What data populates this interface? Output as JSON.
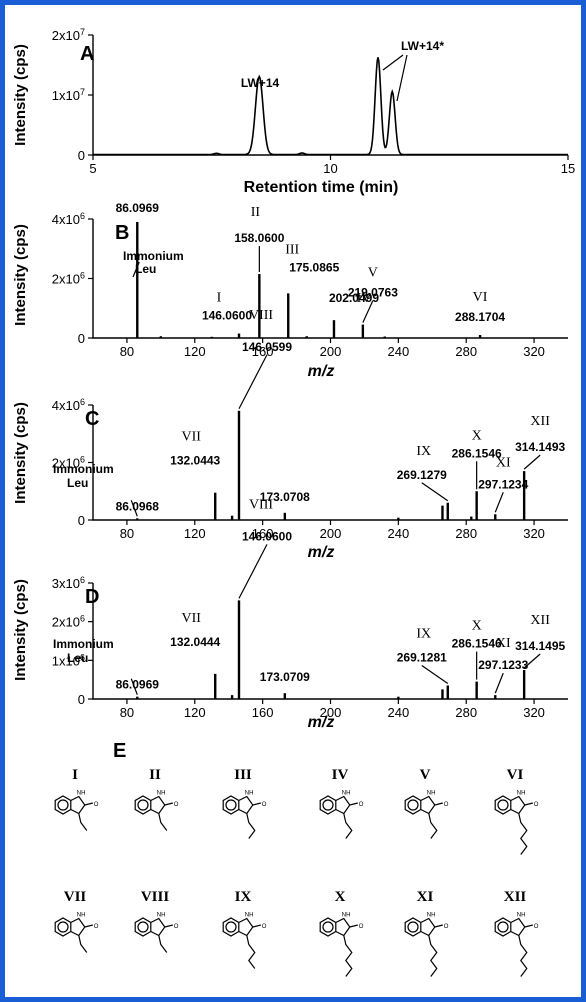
{
  "chart_data": [
    {
      "panel": "A",
      "type": "line",
      "xlabel": "Retention time (min)",
      "ylabel": "Intensity (cps)",
      "xlim": [
        5,
        15
      ],
      "ylim": [
        0,
        20000000
      ],
      "xticks": [
        5,
        10,
        15
      ],
      "yticks": [
        0,
        10000000,
        20000000
      ],
      "ytick_labels": [
        "0",
        "1x10^7",
        "2x10^7"
      ],
      "peaks": [
        {
          "x": 8.5,
          "y": 13000000,
          "width": 0.08
        },
        {
          "x": 11.0,
          "y": 16200000,
          "width": 0.06
        },
        {
          "x": 11.3,
          "y": 10500000,
          "width": 0.06
        },
        {
          "x": 7.6,
          "y": 200000,
          "width": 0.05
        },
        {
          "x": 9.4,
          "y": 250000,
          "width": 0.05
        }
      ],
      "baseline": 80000,
      "annotations": [
        {
          "text": "LW+14",
          "x": 8.5
        },
        {
          "text": "LW+14*",
          "x": 11.15
        }
      ]
    },
    {
      "panel": "B",
      "type": "bar",
      "xlabel": "m/z",
      "ylabel": "Intensity (cps)",
      "xlim": [
        60,
        340
      ],
      "ylim": [
        0,
        4000000
      ],
      "xticks": [
        80,
        120,
        160,
        200,
        240,
        280,
        320
      ],
      "yticks": [
        0,
        2000000,
        4000000
      ],
      "ytick_labels": [
        "0",
        "2x10^6",
        "4x10^6"
      ],
      "peaks": [
        {
          "mz": 86.0969,
          "intensity": 3900000,
          "label": "86.0969"
        },
        {
          "mz": 146.06,
          "intensity": 150000,
          "label": "146.0600",
          "numeral": "I"
        },
        {
          "mz": 158.06,
          "intensity": 2150000,
          "label": "158.0600",
          "numeral": "II"
        },
        {
          "mz": 175.0865,
          "intensity": 1500000,
          "label": "175.0865",
          "numeral": "III"
        },
        {
          "mz": 202.0499,
          "intensity": 600000,
          "label": "202.0499",
          "numeral": "IV"
        },
        {
          "mz": 219.0763,
          "intensity": 450000,
          "label": "219.0763",
          "numeral": "V"
        },
        {
          "mz": 288.1704,
          "intensity": 100000,
          "label": "288.1704",
          "numeral": "VI"
        },
        {
          "mz": 100,
          "intensity": 60000
        },
        {
          "mz": 130,
          "intensity": 40000
        },
        {
          "mz": 186,
          "intensity": 60000
        },
        {
          "mz": 232,
          "intensity": 50000
        }
      ],
      "immonium": [
        "Immonium",
        "Leu"
      ]
    },
    {
      "panel": "C",
      "type": "bar",
      "xlabel": "m/z",
      "ylabel": "Intensity (cps)",
      "xlim": [
        60,
        340
      ],
      "ylim": [
        0,
        4000000
      ],
      "xticks": [
        80,
        120,
        160,
        200,
        240,
        280,
        320
      ],
      "yticks": [
        0,
        2000000,
        4000000
      ],
      "ytick_labels": [
        "0",
        "2x10^6",
        "4x10^6"
      ],
      "peaks": [
        {
          "mz": 86.0968,
          "intensity": 60000,
          "label": "86.0968"
        },
        {
          "mz": 132.0443,
          "intensity": 950000,
          "label": "132.0443",
          "numeral": "VII"
        },
        {
          "mz": 146.0599,
          "intensity": 3800000,
          "label": "146.0599",
          "numeral": "VIII"
        },
        {
          "mz": 173.0708,
          "intensity": 250000,
          "label": "173.0708"
        },
        {
          "mz": 269.1279,
          "intensity": 600000,
          "label": "269.1279",
          "numeral": "IX"
        },
        {
          "mz": 286.1546,
          "intensity": 1000000,
          "label": "286.1546",
          "numeral": "X"
        },
        {
          "mz": 297.1234,
          "intensity": 200000,
          "label": "297.1234",
          "numeral": "XI"
        },
        {
          "mz": 314.1493,
          "intensity": 1700000,
          "label": "314.1493",
          "numeral": "XII"
        },
        {
          "mz": 142,
          "intensity": 150000
        },
        {
          "mz": 240,
          "intensity": 80000
        },
        {
          "mz": 266,
          "intensity": 500000
        },
        {
          "mz": 283,
          "intensity": 120000
        }
      ],
      "immonium": [
        "Immonium",
        "Leu"
      ]
    },
    {
      "panel": "D",
      "type": "bar",
      "xlabel": "m/z",
      "ylabel": "Intensity (cps)",
      "xlim": [
        60,
        340
      ],
      "ylim": [
        0,
        3000000
      ],
      "xticks": [
        80,
        120,
        160,
        200,
        240,
        280,
        320
      ],
      "yticks": [
        0,
        1000000,
        2000000,
        3000000
      ],
      "ytick_labels": [
        "0",
        "1x10^6",
        "2x10^6",
        "3x10^6"
      ],
      "peaks": [
        {
          "mz": 86.0969,
          "intensity": 60000,
          "label": "86.0969"
        },
        {
          "mz": 132.0444,
          "intensity": 650000,
          "label": "132.0444",
          "numeral": "VII"
        },
        {
          "mz": 146.06,
          "intensity": 2550000,
          "label": "146.0600",
          "numeral": "VIII"
        },
        {
          "mz": 173.0709,
          "intensity": 150000,
          "label": "173.0709"
        },
        {
          "mz": 269.1281,
          "intensity": 350000,
          "label": "269.1281",
          "numeral": "IX"
        },
        {
          "mz": 286.1546,
          "intensity": 450000,
          "label": "286.1546",
          "numeral": "X"
        },
        {
          "mz": 297.1233,
          "intensity": 100000,
          "label": "297.1233",
          "numeral": "XI"
        },
        {
          "mz": 314.1495,
          "intensity": 750000,
          "label": "314.1495",
          "numeral": "XII"
        },
        {
          "mz": 142,
          "intensity": 100000
        },
        {
          "mz": 240,
          "intensity": 60000
        },
        {
          "mz": 266,
          "intensity": 250000
        }
      ],
      "immonium": [
        "Immonium",
        "Leu"
      ]
    }
  ],
  "structures": {
    "panel": "E",
    "row1": [
      "I",
      "II",
      "III",
      "IV",
      "V",
      "VI"
    ],
    "row2": [
      "VII",
      "VIII",
      "IX",
      "X",
      "XI",
      "XII"
    ]
  }
}
